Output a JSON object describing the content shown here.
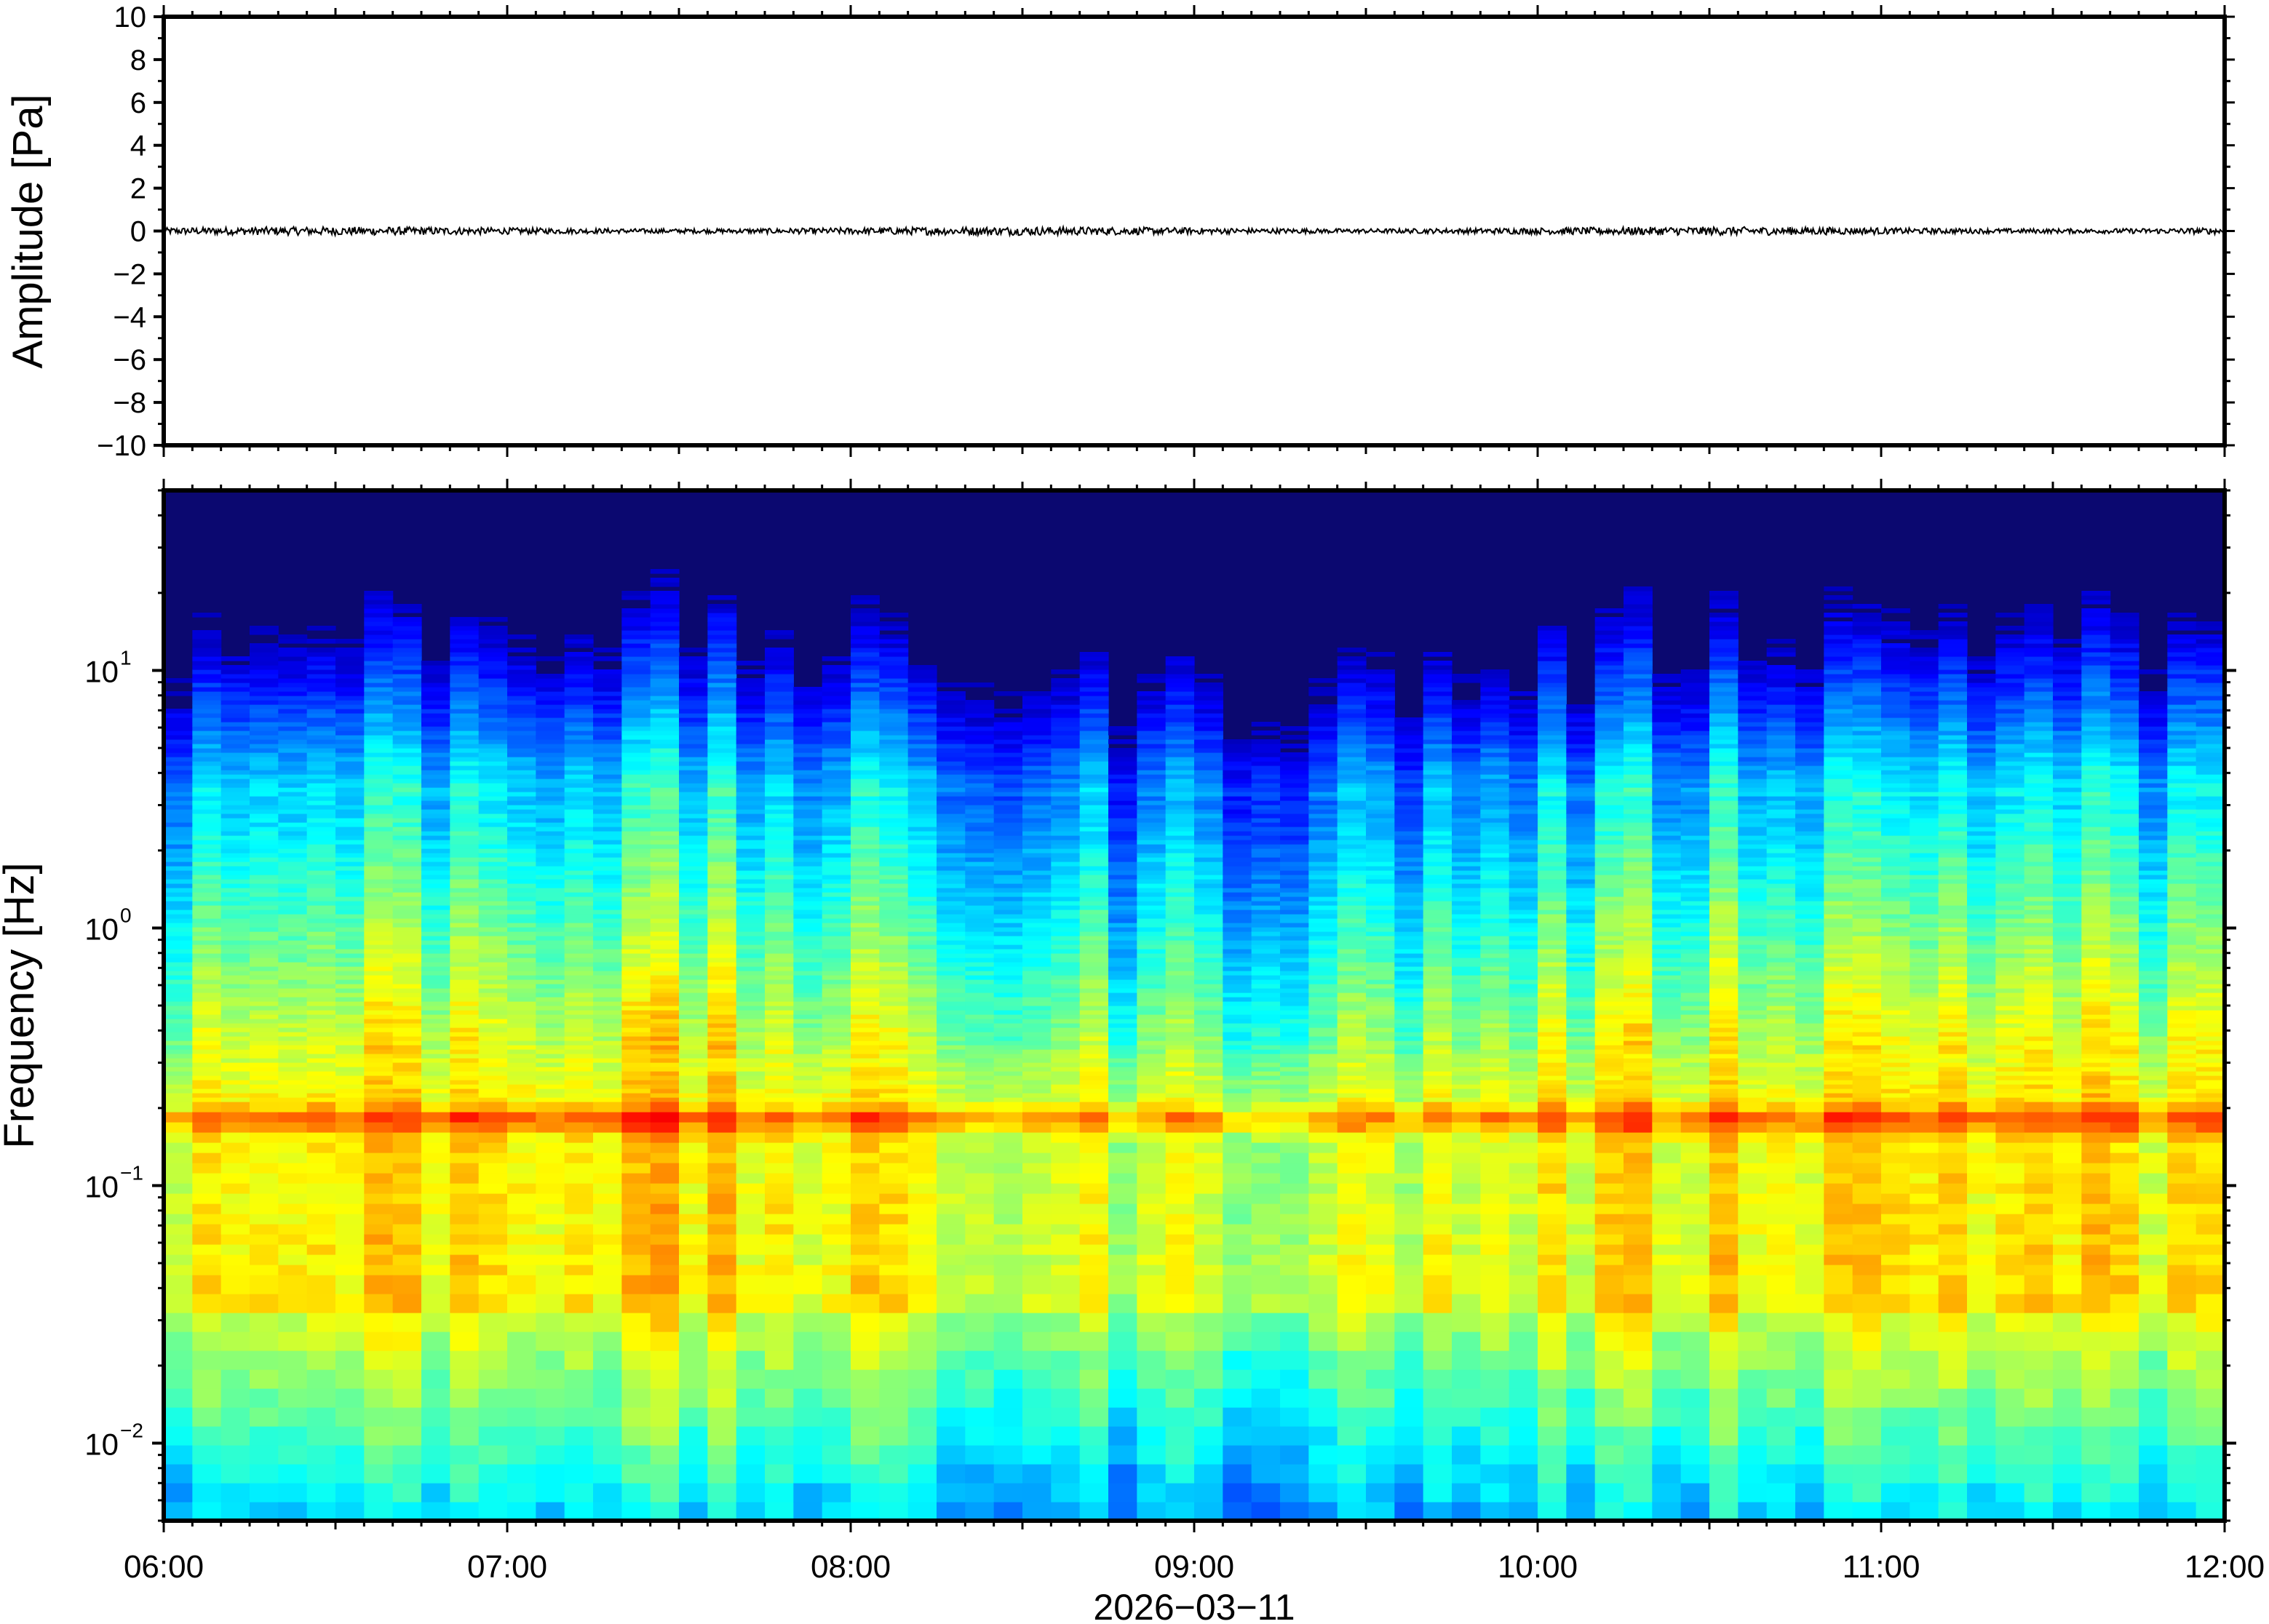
{
  "chart_data": [
    {
      "type": "line",
      "ylabel": "Amplitude [Pa]",
      "ylim": [
        -10,
        10
      ],
      "y_ticks": [
        "10",
        "8",
        "6",
        "4",
        "2",
        "0",
        "−2",
        "−4",
        "−6",
        "−8",
        "−10"
      ],
      "y_tick_values": [
        10,
        8,
        6,
        4,
        2,
        0,
        -2,
        -4,
        -6,
        -8,
        -10
      ],
      "series": [
        {
          "values_description_free": true,
          "approx_amplitude_pa": 0.15
        }
      ],
      "xlim": [
        "06:00",
        "12:00"
      ],
      "grid": false
    },
    {
      "type": "heatmap",
      "ylabel": "Frequency [Hz]",
      "y_scale": "log",
      "ylim": [
        0.005,
        50
      ],
      "y_ticks": [
        {
          "value": 10,
          "base": "10",
          "exp": "1"
        },
        {
          "value": 1,
          "base": "10",
          "exp": "0"
        },
        {
          "value": 0.1,
          "base": "10",
          "exp": "−1"
        },
        {
          "value": 0.01,
          "base": "10",
          "exp": "−2"
        }
      ],
      "xlim": [
        "06:00",
        "12:00"
      ],
      "x_ticks": [
        "06:00",
        "07:00",
        "08:00",
        "09:00",
        "10:00",
        "11:00",
        "12:00"
      ],
      "xlabel": "2026−03−11",
      "colormap": "jet",
      "dominant_band_hz": 0.17,
      "grid": false
    }
  ],
  "colors": {
    "background": "#ffffff",
    "axis": "#000000",
    "spectrogram_top": "#0b0870"
  }
}
